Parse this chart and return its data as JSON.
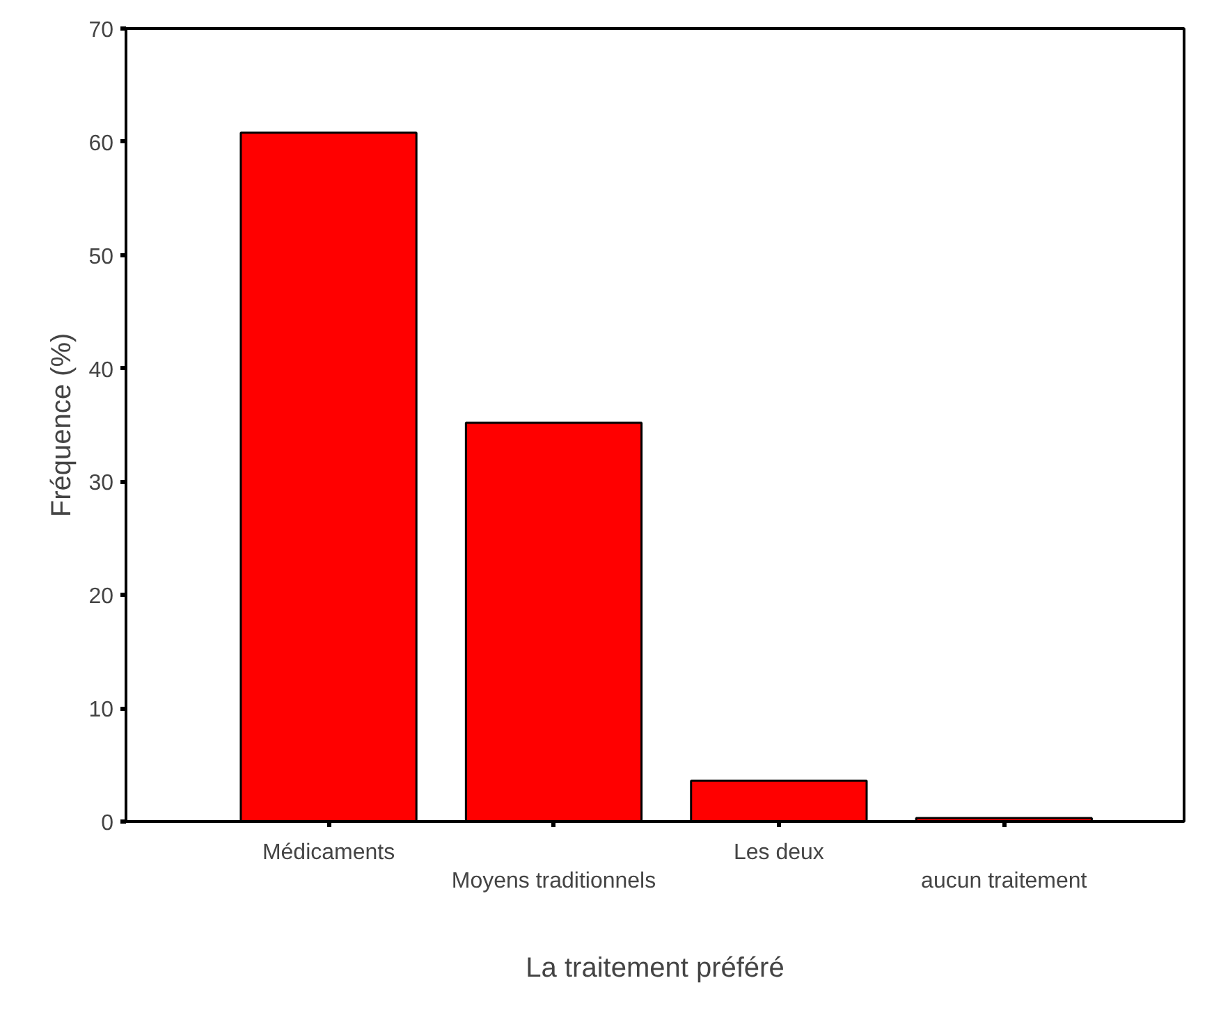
{
  "chart_data": {
    "type": "bar",
    "ylabel": "Fréquence (%)",
    "xlabel": "La traitement préféré",
    "categories": [
      "Médicaments",
      "Moyens traditionnels",
      "Les deux",
      "aucun traitement"
    ],
    "values": [
      60.8,
      35.2,
      3.6,
      0.3
    ],
    "color": "#ff0000",
    "ylim": [
      0,
      70
    ],
    "yticks": [
      0,
      10,
      20,
      30,
      40,
      50,
      60,
      70
    ],
    "grid": false
  }
}
